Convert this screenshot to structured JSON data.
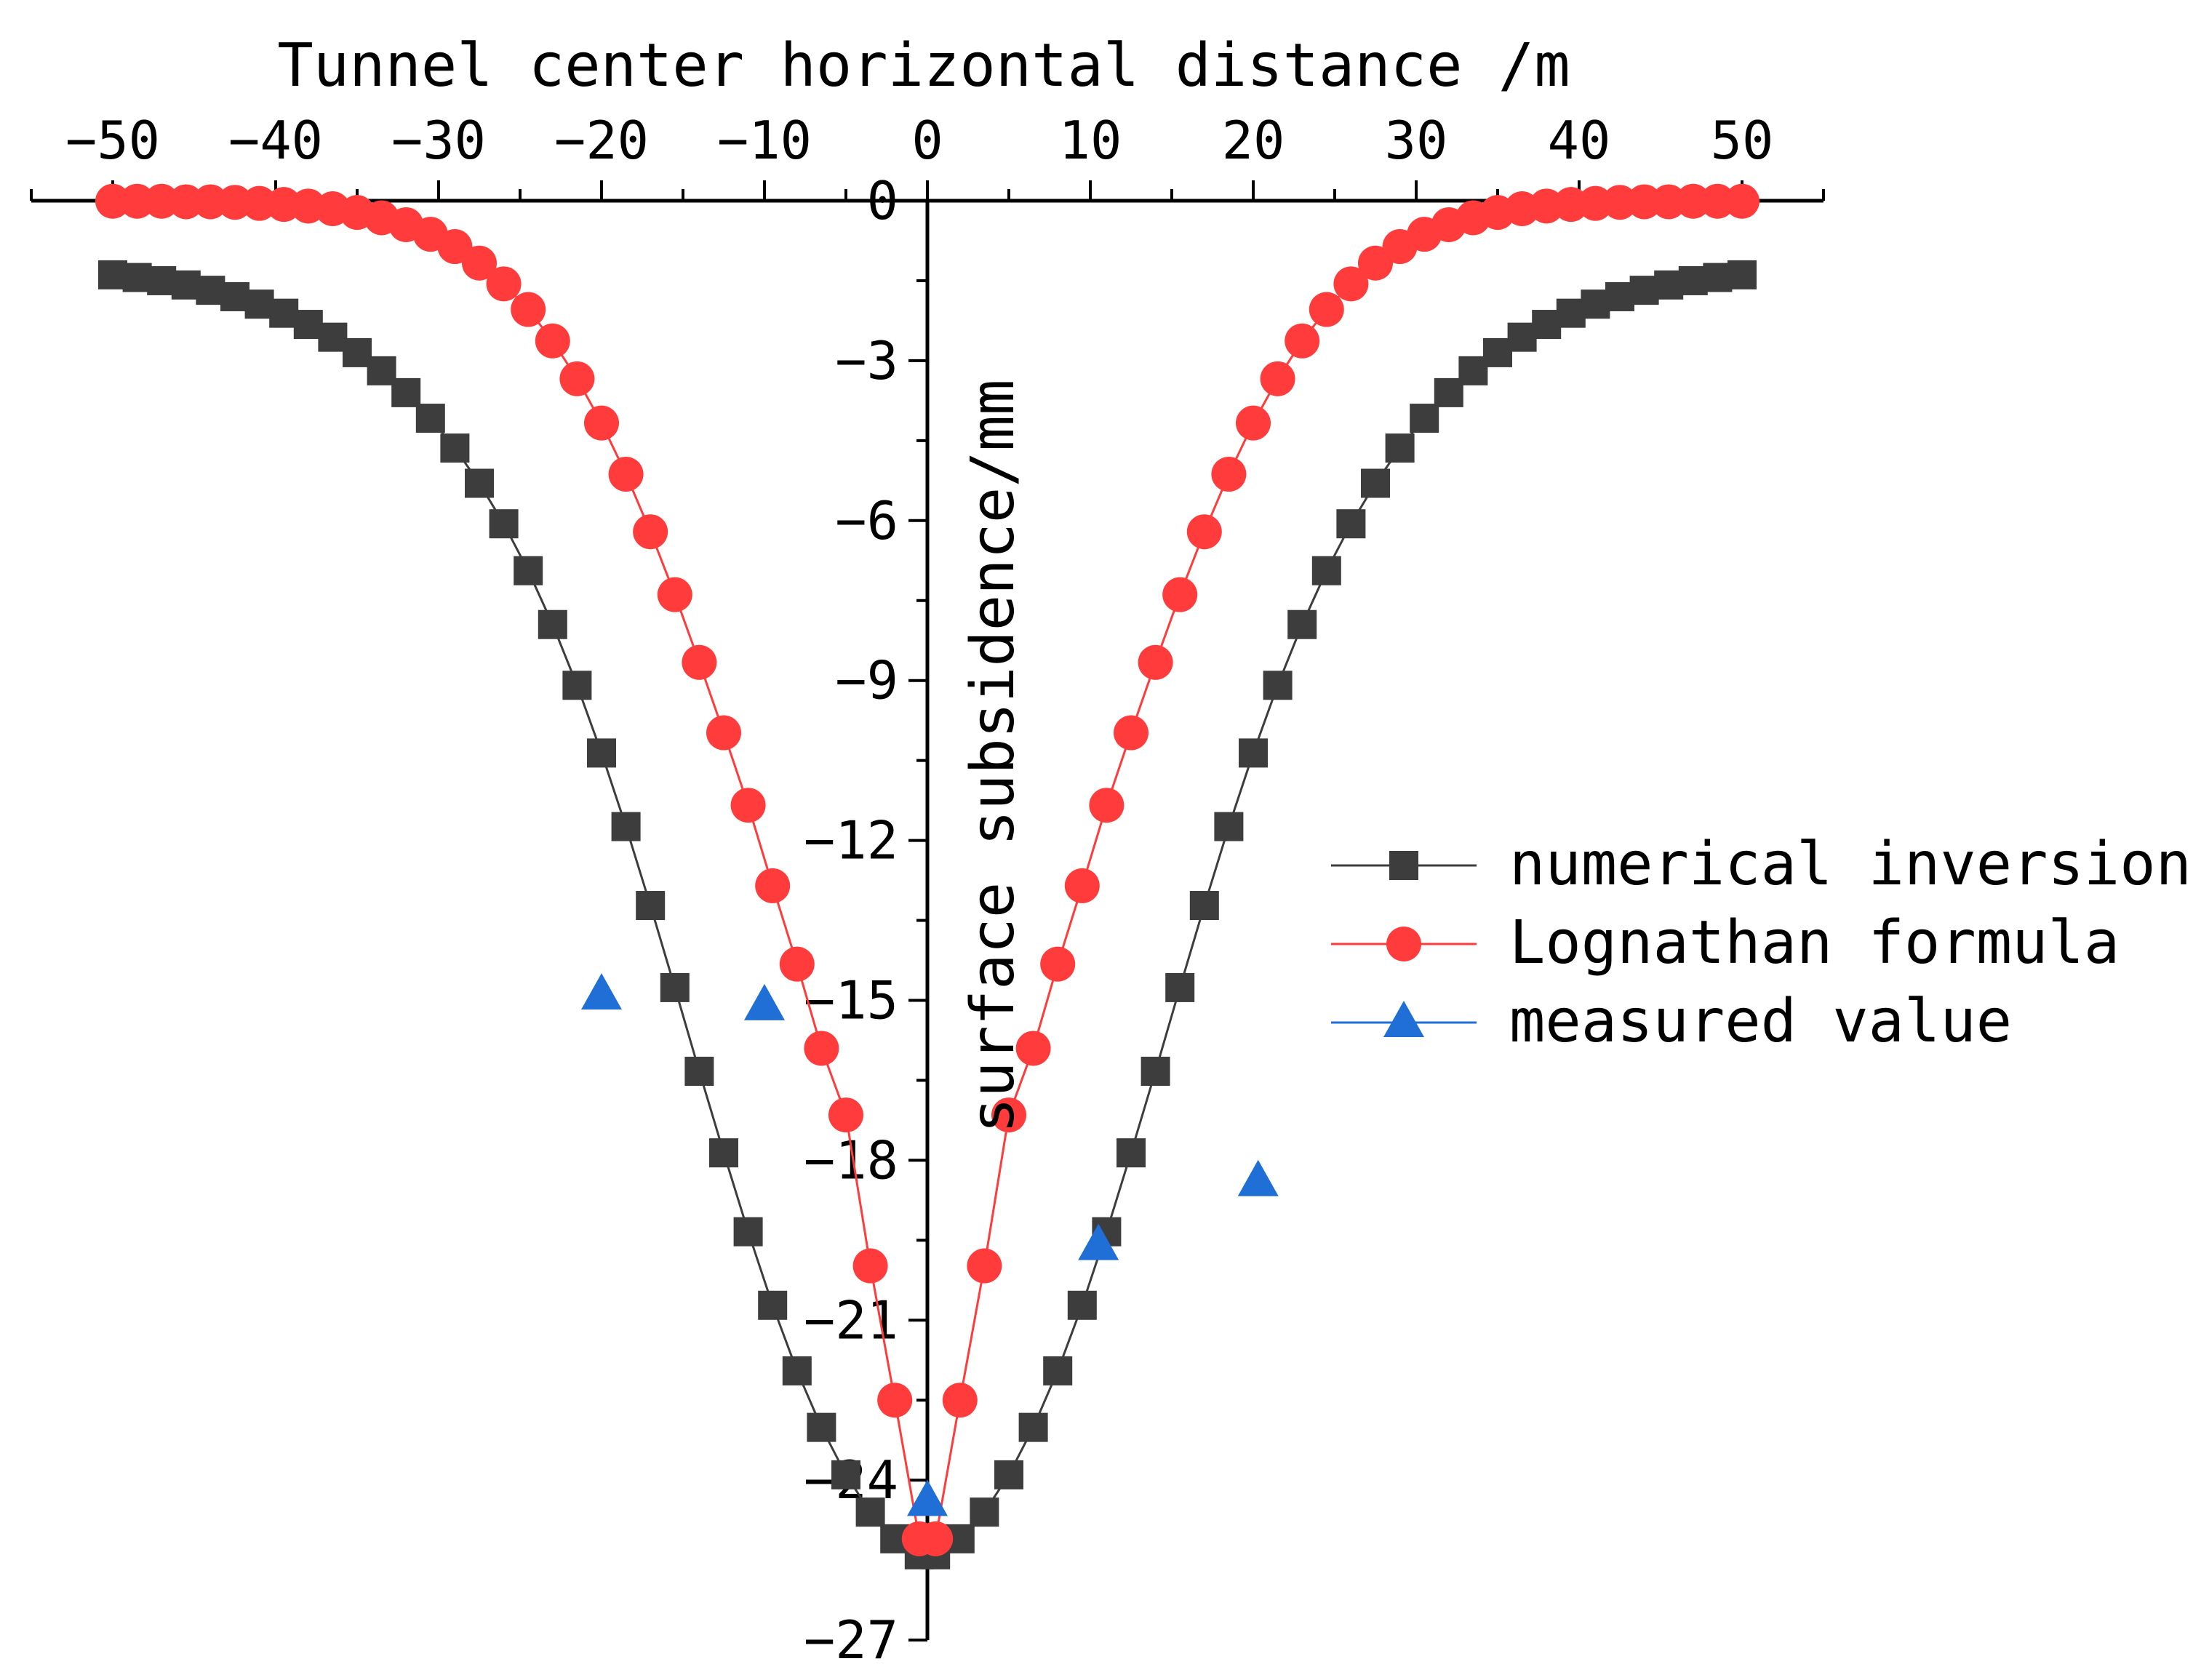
{
  "chart_data": {
    "type": "line",
    "title": "",
    "xlabel": "Tunnel center horizontal distance /m",
    "ylabel": "surface subsidence/mm",
    "xlim": [
      -55,
      55
    ],
    "ylim": [
      -27,
      0
    ],
    "xticks": [
      -50,
      -40,
      -30,
      -20,
      -10,
      0,
      10,
      20,
      30,
      40,
      50
    ],
    "xtick_labels": [
      "−50",
      "−40",
      "−30",
      "−20",
      "−10",
      "0",
      "10",
      "20",
      "30",
      "40",
      "50"
    ],
    "yticks": [
      0,
      -3,
      -6,
      -9,
      -12,
      -15,
      -18,
      -21,
      -24,
      -27
    ],
    "ytick_labels": [
      "0",
      "−3",
      "−6",
      "−9",
      "−12",
      "−15",
      "−18",
      "−21",
      "−24",
      "−27"
    ],
    "grid": false,
    "legend_position": "right",
    "series": [
      {
        "name": "numerical inversion",
        "marker": "square",
        "color": "#3d3d3d",
        "line": true,
        "x": [
          -50,
          -48.5,
          -47,
          -45.5,
          -44,
          -42.5,
          -41,
          -39.5,
          -38,
          -36.5,
          -35,
          -33.5,
          -32,
          -30.5,
          -29,
          -27.5,
          -26,
          -24.5,
          -23,
          -21.5,
          -20,
          -18.5,
          -17,
          -15.5,
          -14,
          -12.5,
          -11,
          -9.5,
          -8,
          -6.5,
          -5,
          -3.5,
          -2,
          -0.5,
          0.5,
          2,
          3.5,
          5,
          6.5,
          8,
          9.5,
          11,
          12.5,
          14,
          15.5,
          17,
          18.5,
          20,
          21.5,
          23,
          24.5,
          26,
          27.5,
          29,
          30.5,
          32,
          33.5,
          35,
          36.5,
          38,
          39.5,
          41,
          42.5,
          44,
          45.5,
          47,
          48.5,
          50
        ],
        "values": [
          -1.39,
          -1.44,
          -1.5,
          -1.58,
          -1.68,
          -1.8,
          -1.94,
          -2.11,
          -2.32,
          -2.56,
          -2.85,
          -3.19,
          -3.6,
          -4.08,
          -4.64,
          -5.3,
          -6.06,
          -6.94,
          -7.95,
          -9.09,
          -10.36,
          -11.74,
          -13.22,
          -14.76,
          -16.33,
          -17.86,
          -19.34,
          -20.72,
          -21.95,
          -23.01,
          -23.9,
          -24.6,
          -25.1,
          -25.4,
          -25.4,
          -25.1,
          -24.6,
          -23.9,
          -23.01,
          -21.95,
          -20.72,
          -19.34,
          -17.86,
          -16.33,
          -14.76,
          -13.22,
          -11.74,
          -10.36,
          -9.09,
          -7.95,
          -6.94,
          -6.06,
          -5.3,
          -4.64,
          -4.08,
          -3.6,
          -3.19,
          -2.85,
          -2.56,
          -2.32,
          -2.11,
          -1.94,
          -1.8,
          -1.68,
          -1.58,
          -1.5,
          -1.44,
          -1.39
        ]
      },
      {
        "name": "Lognathan formula",
        "marker": "circle",
        "color": "#ff3b3b",
        "line": true,
        "x": [
          -50,
          -48.5,
          -47,
          -45.5,
          -44,
          -42.5,
          -41,
          -39.5,
          -38,
          -36.5,
          -35,
          -33.5,
          -32,
          -30.5,
          -29,
          -27.5,
          -26,
          -24.5,
          -23,
          -21.5,
          -20,
          -18.5,
          -17,
          -15.5,
          -14,
          -12.5,
          -11,
          -9.5,
          -8,
          -6.5,
          -5,
          -3.5,
          -2,
          -0.5,
          0.5,
          2,
          3.5,
          5,
          6.5,
          8,
          9.5,
          11,
          12.5,
          14,
          15.5,
          17,
          18.5,
          20,
          21.5,
          23,
          24.5,
          26,
          27.5,
          29,
          30.5,
          32,
          33.5,
          35,
          36.5,
          38,
          39.5,
          41,
          42.5,
          44,
          45.5,
          47,
          48.5,
          50
        ],
        "values": [
          -0.01,
          -0.01,
          -0.01,
          -0.02,
          -0.02,
          -0.03,
          -0.05,
          -0.07,
          -0.1,
          -0.15,
          -0.22,
          -0.32,
          -0.45,
          -0.63,
          -0.86,
          -1.17,
          -1.56,
          -2.04,
          -2.63,
          -3.34,
          -4.17,
          -5.13,
          -6.21,
          -7.39,
          -8.66,
          -9.98,
          -11.34,
          -12.85,
          -14.32,
          -15.9,
          -17.15,
          -19.98,
          -22.5,
          -25.1,
          -25.1,
          -22.5,
          -19.98,
          -17.15,
          -15.9,
          -14.32,
          -12.85,
          -11.34,
          -9.98,
          -8.66,
          -7.39,
          -6.21,
          -5.13,
          -4.17,
          -3.34,
          -2.63,
          -2.04,
          -1.56,
          -1.17,
          -0.86,
          -0.63,
          -0.45,
          -0.32,
          -0.22,
          -0.15,
          -0.1,
          -0.07,
          -0.05,
          -0.03,
          -0.02,
          -0.02,
          -0.01,
          -0.01,
          -0.01
        ]
      },
      {
        "name": "measured value",
        "marker": "triangle",
        "color": "#1f6fd6",
        "line": false,
        "x": [
          -20,
          -10,
          0,
          10.5,
          20.3
        ],
        "values": [
          -14.9,
          -15.1,
          -24.4,
          -19.6,
          -18.4
        ]
      }
    ]
  }
}
